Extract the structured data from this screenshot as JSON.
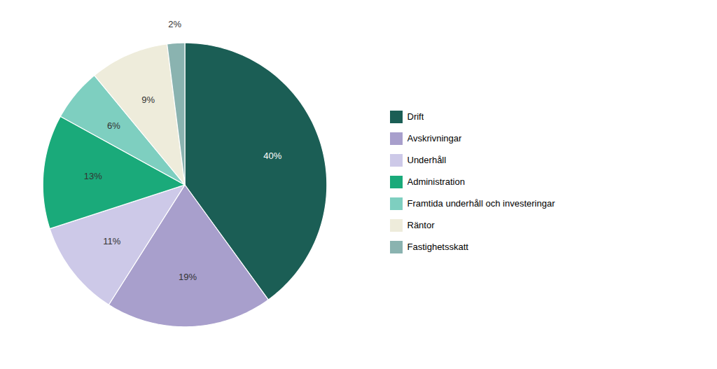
{
  "chart_data": {
    "type": "pie",
    "categories": [
      "Drift",
      "Avskrivningar",
      "Underhåll",
      "Administration",
      "Framtida underhåll och investeringar",
      "Räntor",
      "Fastighetsskatt"
    ],
    "values": [
      40,
      19,
      11,
      13,
      6,
      9,
      2
    ],
    "value_labels": [
      "40%",
      "19%",
      "11%",
      "13%",
      "6%",
      "9%",
      "2%"
    ],
    "colors": [
      "#1b5e55",
      "#a89fcc",
      "#cdc9e8",
      "#1aaa7a",
      "#7ecfc0",
      "#eeecdb",
      "#8ab3b0"
    ],
    "data_labels": true,
    "legend": "right"
  }
}
